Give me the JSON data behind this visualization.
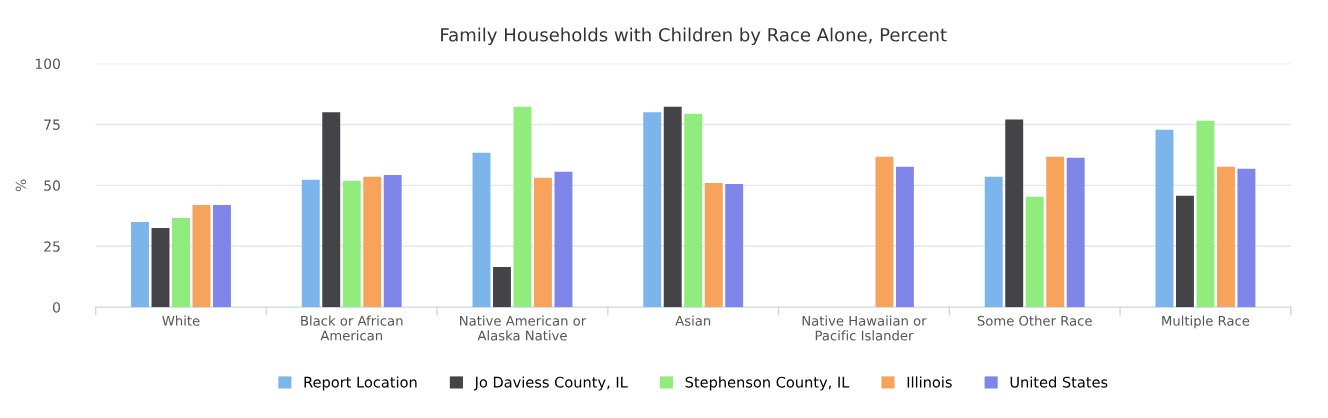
{
  "chart_data": {
    "type": "bar",
    "title": "Family Households with Children by Race Alone, Percent",
    "ylabel": "%",
    "categories": [
      "White",
      "Black or African\nAmerican",
      "Native American or\nAlaska Native",
      "Asian",
      "Native Hawaiian or\nPacific Islander",
      "Some Other Race",
      "Multiple Race"
    ],
    "series": [
      {
        "name": "Report Location",
        "color": "#7cb5ec",
        "values": [
          35,
          52.3,
          63.4,
          80,
          null,
          53.5,
          72.8
        ]
      },
      {
        "name": "Jo Daviess County, IL",
        "color": "#434348",
        "values": [
          32.5,
          80,
          16.5,
          82.3,
          null,
          77,
          45.7
        ]
      },
      {
        "name": "Stephenson County, IL",
        "color": "#90ed7d",
        "values": [
          36.6,
          51.9,
          82.3,
          79.4,
          null,
          45.3,
          76.5
        ]
      },
      {
        "name": "Illinois",
        "color": "#f7a35c",
        "values": [
          42,
          53.5,
          53.1,
          51,
          61.7,
          61.7,
          57.6
        ]
      },
      {
        "name": "United States",
        "color": "#8085e9",
        "values": [
          42,
          54.3,
          55.6,
          50.6,
          57.6,
          61.3,
          56.8
        ]
      }
    ],
    "ylim": [
      0,
      100
    ],
    "yticks": [
      0,
      25,
      50,
      75,
      100
    ],
    "grid": "y",
    "legend": "bottom"
  }
}
